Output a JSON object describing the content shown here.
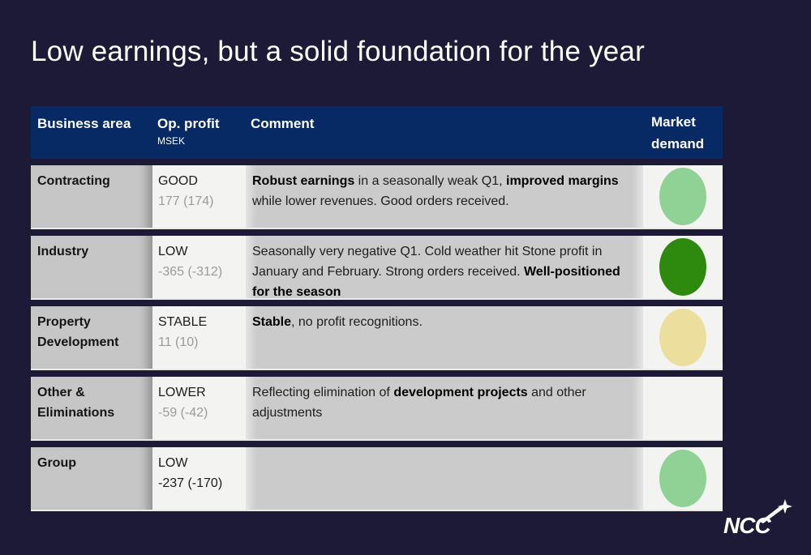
{
  "slide": {
    "title": "Low earnings, but a solid foundation for the year"
  },
  "colors": {
    "background": "#1d1a38",
    "table_header_blue": "#072a64",
    "demand_light_green": "#90d295",
    "demand_dark_green": "#2d8a0e",
    "demand_yellow": "#ecdf9e"
  },
  "table": {
    "headers": {
      "business_area": "Business area",
      "op_profit": "Op. profit",
      "op_profit_unit": "MSEK",
      "comment": "Comment",
      "market_demand": "Market demand"
    },
    "rows": [
      {
        "business_area": "Contracting",
        "status": "GOOD",
        "value": "177 (174)",
        "value_muted": true,
        "comment": [
          {
            "text": "Robust earnings",
            "bold": true
          },
          {
            "text": " in a seasonally weak Q1, ",
            "bold": false
          },
          {
            "text": "improved margins",
            "bold": true
          },
          {
            "text": " while lower revenues. Good orders received.",
            "bold": false
          }
        ],
        "market_demand": {
          "show": true,
          "color": "#90d295"
        }
      },
      {
        "business_area": "Industry",
        "status": "LOW",
        "value": "-365 (-312)",
        "value_muted": true,
        "comment": [
          {
            "text": "Seasonally very negative Q1. Cold weather hit Stone profit in January and February. Strong orders received. ",
            "bold": false
          },
          {
            "text": "Well-positioned for the season",
            "bold": true
          }
        ],
        "market_demand": {
          "show": true,
          "color": "#2d8a0e"
        }
      },
      {
        "business_area": "Property Development",
        "status": "STABLE",
        "value": "11 (10)",
        "value_muted": true,
        "comment": [
          {
            "text": "Stable",
            "bold": true
          },
          {
            "text": ", no profit recognitions.",
            "bold": false
          }
        ],
        "market_demand": {
          "show": true,
          "color": "#ecdf9e"
        }
      },
      {
        "business_area": "Other & Eliminations",
        "status": "LOWER",
        "value": "-59 (-42)",
        "value_muted": true,
        "comment": [
          {
            "text": "Reflecting elimination of ",
            "bold": false
          },
          {
            "text": "development projects",
            "bold": true
          },
          {
            "text": " and other adjustments",
            "bold": false
          }
        ],
        "market_demand": {
          "show": false,
          "color": ""
        }
      },
      {
        "business_area": "Group",
        "status": "LOW",
        "value": "-237 (-170)",
        "value_muted": false,
        "comment": [],
        "market_demand": {
          "show": true,
          "color": "#90d295"
        }
      }
    ]
  },
  "logo": {
    "text": "NCC"
  }
}
